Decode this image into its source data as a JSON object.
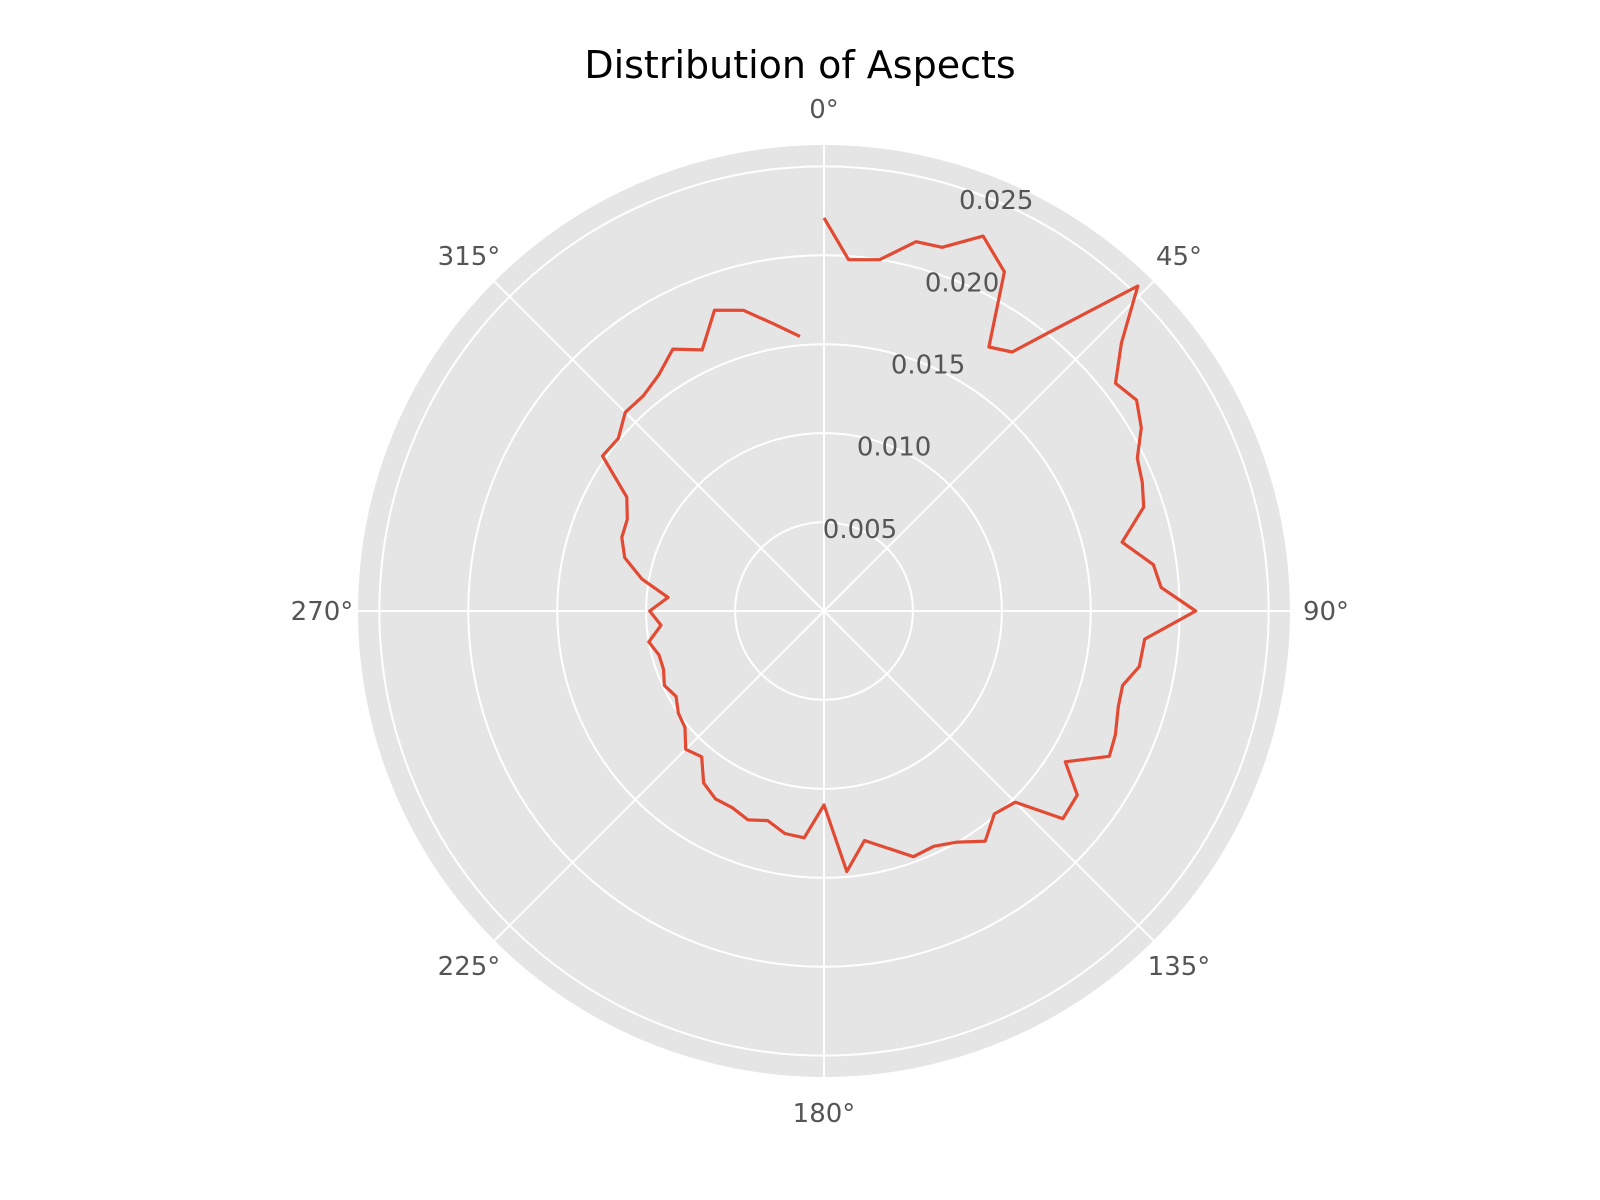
{
  "chart_data": {
    "type": "line",
    "projection": "polar",
    "title": "Distribution of Aspects",
    "theta_direction": "clockwise",
    "theta_zero": "top",
    "theta_ticks": [
      {
        "deg": 0,
        "label": "0°"
      },
      {
        "deg": 45,
        "label": "45°"
      },
      {
        "deg": 90,
        "label": "90°"
      },
      {
        "deg": 135,
        "label": "135°"
      },
      {
        "deg": 180,
        "label": "180°"
      },
      {
        "deg": 225,
        "label": "225°"
      },
      {
        "deg": 270,
        "label": "270°"
      },
      {
        "deg": 315,
        "label": "315°"
      }
    ],
    "r_ticks": [
      {
        "value": 0.005,
        "label": "0.005"
      },
      {
        "value": 0.01,
        "label": "0.010"
      },
      {
        "value": 0.015,
        "label": "0.015"
      },
      {
        "value": 0.02,
        "label": "0.020"
      },
      {
        "value": 0.025,
        "label": "0.025"
      }
    ],
    "rlim": [
      0,
      0.0262
    ],
    "grid": true,
    "style": {
      "background": "#e5e5e5",
      "grid": "#ffffff",
      "line": "#e24a33"
    },
    "series": [
      {
        "theta": [
          0,
          4,
          9,
          14,
          18,
          23,
          28,
          32,
          36,
          39,
          44,
          48,
          52,
          56,
          60,
          64,
          68,
          72,
          77,
          82,
          86,
          90,
          95,
          100,
          104,
          108,
          113,
          117,
          122,
          126,
          131,
          135,
          140,
          145,
          150,
          155,
          160,
          165,
          170,
          175,
          180,
          185,
          190,
          195,
          200,
          205,
          210,
          215,
          220,
          225,
          230,
          235,
          240,
          245,
          250,
          255,
          260,
          265,
          270,
          275,
          280,
          285,
          290,
          295,
          300,
          305,
          310,
          315,
          320,
          325,
          330,
          335,
          340,
          345,
          350,
          355
        ],
        "r": [
          0.0221,
          0.0198,
          0.02,
          0.0214,
          0.0215,
          0.0229,
          0.0216,
          0.0175,
          0.018,
          0.0202,
          0.0254,
          0.0225,
          0.0208,
          0.0212,
          0.0206,
          0.0196,
          0.0193,
          0.0189,
          0.0172,
          0.0187,
          0.019,
          0.0209,
          0.0181,
          0.018,
          0.0173,
          0.0174,
          0.0178,
          0.018,
          0.016,
          0.0176,
          0.0178,
          0.0152,
          0.0149,
          0.0158,
          0.015,
          0.0146,
          0.0147,
          0.0138,
          0.0131,
          0.0147,
          0.0109,
          0.0128,
          0.0127,
          0.0122,
          0.0125,
          0.0122,
          0.0122,
          0.0118,
          0.0107,
          0.011,
          0.0102,
          0.01,
          0.0096,
          0.0099,
          0.0096,
          0.0096,
          0.01,
          0.0092,
          0.0098,
          0.0088,
          0.0104,
          0.0116,
          0.0121,
          0.0122,
          0.0128,
          0.0152,
          0.0151,
          0.0158,
          0.0158,
          0.0162,
          0.017,
          0.0162,
          0.018,
          0.0175,
          0.0164,
          0.0155
        ]
      }
    ]
  }
}
